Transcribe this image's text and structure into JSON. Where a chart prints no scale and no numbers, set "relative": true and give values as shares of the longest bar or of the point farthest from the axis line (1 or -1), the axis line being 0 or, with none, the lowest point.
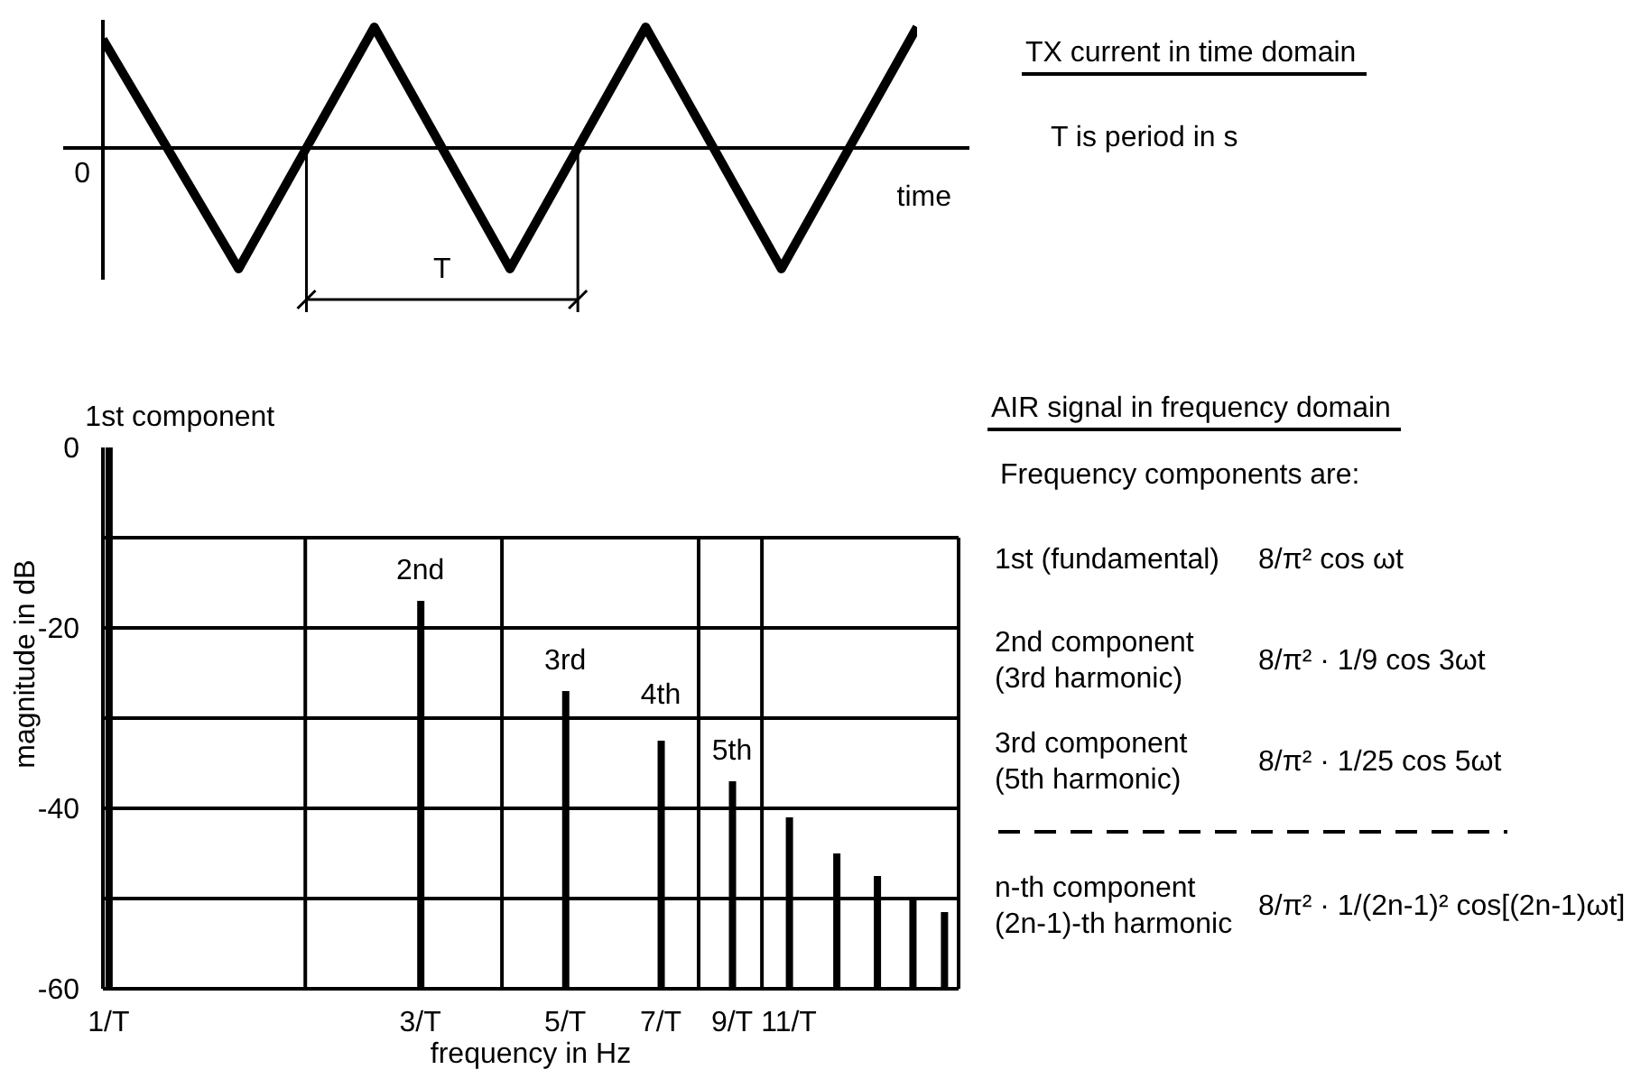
{
  "chart_data": [
    {
      "type": "line",
      "xlabel": "time",
      "relative": true,
      "categories": [
        null,
        null,
        null,
        null,
        null,
        null,
        null
      ],
      "values": [
        0.9,
        -1,
        1,
        -1,
        1,
        -1,
        1
      ],
      "color": "#000000",
      "annotations": [
        "T",
        "0"
      ]
    },
    {
      "type": "other",
      "title": "TX current in time domain",
      "annotations": [
        "T is period in s"
      ]
    },
    {
      "type": "bar",
      "xlabel": "frequency in Hz",
      "ylabel": "magnitude in dB",
      "x": [
        1,
        3,
        5,
        7,
        9,
        11,
        13,
        15,
        17,
        19
      ],
      "base": [
        -60,
        -60,
        -60,
        -60,
        -60,
        -60,
        -60,
        -60,
        -60,
        -60
      ],
      "values": [
        60,
        43,
        33,
        27.5,
        23,
        19,
        15,
        12.5,
        10,
        8.5
      ],
      "color": "#000000",
      "log": "x",
      "xlim": [
        0.98,
        20
      ],
      "xticks": [
        {
          "value": 1,
          "label": "1/T"
        },
        {
          "value": 3,
          "label": "3/T"
        },
        {
          "value": 5,
          "label": "5/T"
        },
        {
          "value": 7,
          "label": "7/T"
        },
        {
          "value": 9,
          "label": "9/T"
        },
        {
          "value": 11,
          "label": "11/T"
        }
      ],
      "ylim": [
        -60,
        0
      ],
      "yticks": [
        0,
        {
          "value": -10,
          "label": null
        },
        -20,
        {
          "value": -30,
          "label": null
        },
        -40,
        {
          "value": -50,
          "label": null
        },
        -60
      ],
      "grid": "y",
      "ref_lines": [
        {
          "axis": "x",
          "value": 2
        },
        {
          "axis": "x",
          "value": 4
        },
        {
          "axis": "x",
          "value": 8
        },
        {
          "axis": "x",
          "value": 10
        }
      ],
      "annotations": [
        {
          "text": "1st component",
          "x": 1,
          "y": 0
        },
        {
          "text": "2nd",
          "x": 3,
          "y": -17
        },
        {
          "text": "3rd",
          "x": 5,
          "y": -27
        },
        {
          "text": "4th",
          "x": 7,
          "y": -32.5
        },
        {
          "text": "5th",
          "x": 9,
          "y": -37
        }
      ]
    },
    {
      "type": "other",
      "title": "AIR signal in frequency domain",
      "annotations": [
        "Frequency components are:",
        "1st (fundamental)",
        "8/π² cos ωt",
        "2nd component",
        "(3rd harmonic)",
        "8/π² · 1/9 cos 3ωt",
        "3rd component",
        "(5th harmonic)",
        "8/π² · 1/25 cos 5ωt",
        "n-th component",
        "(2n-1)-th harmonic",
        "8/π² · 1/(2n-1)² cos[(2n-1)ωt]"
      ]
    }
  ]
}
